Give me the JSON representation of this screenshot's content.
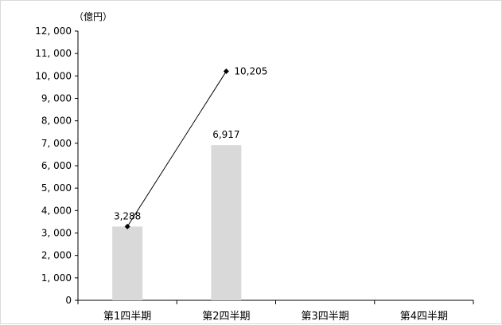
{
  "chart_data": {
    "type": "bar",
    "unit": "（億円）",
    "categories": [
      "第1四半期",
      "第2四半期",
      "第3四半期",
      "第4四半期"
    ],
    "series": [
      {
        "type": "bar",
        "values": [
          3288,
          6917,
          null,
          null
        ],
        "data_labels": [
          "3,288",
          "6,917",
          "",
          ""
        ],
        "color": "#d9d9d9"
      },
      {
        "type": "line",
        "values": [
          3288,
          10205,
          null,
          null
        ],
        "data_labels": [
          "",
          "10,205",
          "",
          ""
        ],
        "color": "#000000"
      }
    ],
    "ylim": [
      0,
      12000
    ],
    "yticks": [
      0,
      1000,
      2000,
      3000,
      4000,
      5000,
      6000,
      7000,
      8000,
      9000,
      10000,
      11000,
      12000
    ],
    "ytick_labels": [
      "0",
      "1, 000",
      "2, 000",
      "3, 000",
      "4, 000",
      "5, 000",
      "6, 000",
      "7, 000",
      "8, 000",
      "9, 000",
      "10, 000",
      "11, 000",
      "12, 000"
    ],
    "grid": false
  }
}
